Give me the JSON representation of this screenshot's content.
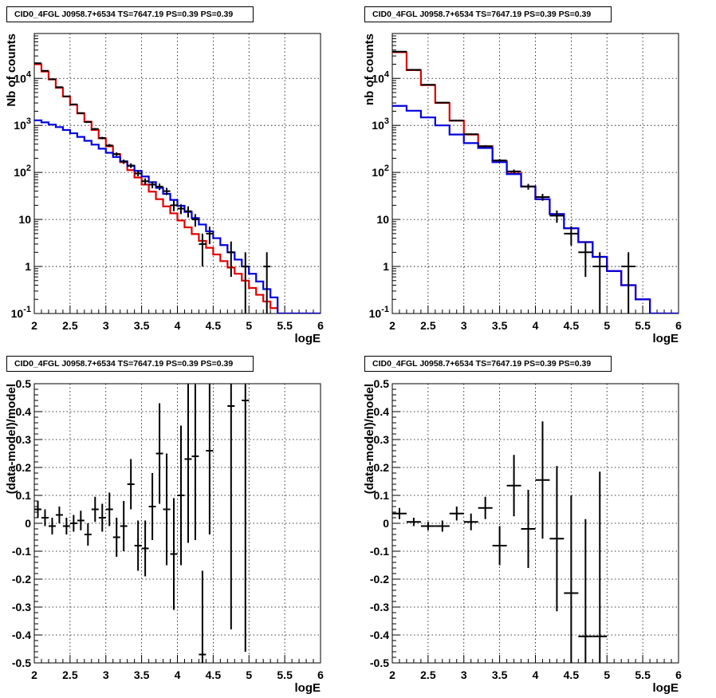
{
  "chart_data": [
    {
      "type": "step-line-with-errorbars",
      "title": "CID0_4FGL J0958.7+6534 TS=7647.19 PS=0.39 PS=0.39",
      "xlabel": "logE",
      "ylabel": "Nb of counts",
      "xlim": [
        2,
        6
      ],
      "ylim": [
        0.1,
        90000
      ],
      "log_y": true,
      "grid": true,
      "xticks": [
        "2",
        "2.5",
        "3",
        "3.5",
        "4",
        "4.5",
        "5",
        "5.5",
        "6"
      ],
      "yticks": [
        "10^-1",
        "1",
        "10",
        "10^2",
        "10^3",
        "10^4"
      ],
      "bin_edges": [
        2.0,
        2.1,
        2.2,
        2.3,
        2.4,
        2.5,
        2.6,
        2.7,
        2.8,
        2.9,
        3.0,
        3.1,
        3.2,
        3.3,
        3.4,
        3.5,
        3.6,
        3.7,
        3.8,
        3.9,
        4.0,
        4.1,
        4.2,
        4.3,
        4.4,
        4.5,
        4.6,
        4.7,
        4.8,
        4.9,
        5.0,
        5.1,
        5.2,
        5.3,
        5.4,
        5.5,
        5.6,
        5.7,
        5.8,
        5.9,
        6.0
      ],
      "series": [
        {
          "color": "#e00000",
          "values": [
            20000,
            14000,
            9500,
            6300,
            4100,
            2750,
            1800,
            1200,
            800,
            530,
            360,
            245,
            165,
            112,
            78,
            55,
            39,
            27,
            19,
            13.5,
            9.5,
            6.8,
            4.9,
            3.5,
            2.5,
            1.8,
            1.3,
            0.95,
            0.7,
            0.5,
            0.35,
            0.25,
            0.18,
            0.13,
            0.1,
            0.1,
            0.1,
            0.1,
            0.1,
            0.1
          ]
        },
        {
          "color": "#0000e0",
          "values": [
            1280,
            1160,
            1040,
            920,
            800,
            680,
            570,
            470,
            390,
            320,
            262,
            213,
            172,
            138,
            108,
            82,
            62,
            47,
            35,
            26,
            19.5,
            14.5,
            10.7,
            7.8,
            5.6,
            4.0,
            2.85,
            2.0,
            1.4,
            1.0,
            0.7,
            0.48,
            0.33,
            0.22,
            0.1,
            0.1,
            0.1,
            0.1,
            0.1,
            0.1
          ]
        }
      ],
      "points": {
        "color": "#000000",
        "x": [
          2.05,
          2.15,
          2.25,
          2.35,
          2.45,
          2.55,
          2.65,
          2.75,
          2.85,
          2.95,
          3.05,
          3.15,
          3.25,
          3.35,
          3.45,
          3.55,
          3.65,
          3.75,
          3.85,
          3.95,
          4.05,
          4.15,
          4.25,
          4.35,
          4.45,
          4.75,
          4.95,
          5.25
        ],
        "y": [
          21000,
          14500,
          9600,
          6500,
          4150,
          2800,
          1830,
          1180,
          840,
          540,
          375,
          245,
          170,
          140,
          95,
          65,
          55,
          50,
          40,
          20,
          17,
          15,
          10,
          3,
          5,
          2,
          1,
          1
        ],
        "yerr_low": [
          200,
          170,
          140,
          120,
          90,
          75,
          60,
          50,
          40,
          32,
          28,
          22,
          18,
          16,
          12,
          10,
          9,
          8,
          7,
          5,
          4,
          4,
          3,
          2,
          2,
          1.4,
          1,
          1
        ],
        "yerr_high": [
          200,
          170,
          140,
          120,
          90,
          75,
          60,
          50,
          40,
          32,
          28,
          22,
          18,
          16,
          12,
          10,
          9,
          8,
          7,
          5,
          4,
          4,
          3,
          2,
          2,
          1.4,
          1,
          1
        ]
      }
    },
    {
      "type": "step-line-with-errorbars",
      "title": "CID0_4FGL J0958.7+6534 TS=7647.19 PS=0.39 PS=0.39",
      "xlabel": "logE",
      "ylabel": "nb of counts",
      "xlim": [
        2,
        6
      ],
      "ylim": [
        0.1,
        90000
      ],
      "log_y": true,
      "grid": true,
      "xticks": [
        "2",
        "2.5",
        "3",
        "3.5",
        "4",
        "4.5",
        "5",
        "5.5",
        "6"
      ],
      "yticks": [
        "10^-1",
        "1",
        "10",
        "10^2",
        "10^3",
        "10^4"
      ],
      "bin_edges": [
        2.0,
        2.2,
        2.4,
        2.6,
        2.8,
        3.0,
        3.2,
        3.4,
        3.6,
        3.8,
        4.0,
        4.2,
        4.4,
        4.6,
        4.8,
        5.0,
        5.2,
        5.4,
        5.6,
        5.8,
        6.0
      ],
      "series": [
        {
          "color": "#e00000",
          "values": [
            36000,
            15000,
            7200,
            3000,
            1260,
            640,
            360,
            175,
            95,
            50,
            27,
            13,
            6.5,
            3.3,
            1.6,
            0.8,
            0.4,
            0.2,
            0.1,
            0.1
          ]
        },
        {
          "color": "#0000e0",
          "values": [
            2600,
            2050,
            1480,
            1000,
            640,
            420,
            330,
            165,
            92,
            50,
            27,
            13,
            6.5,
            3.3,
            1.6,
            0.8,
            0.4,
            0.2,
            0.1,
            0.1
          ]
        }
      ],
      "points": {
        "color": "#000000",
        "x": [
          2.1,
          2.3,
          2.5,
          2.7,
          2.9,
          3.1,
          3.3,
          3.5,
          3.7,
          3.9,
          4.1,
          4.3,
          4.5,
          4.7,
          4.9,
          5.3
        ],
        "y": [
          37000,
          15200,
          7300,
          3050,
          1270,
          650,
          360,
          180,
          105,
          50,
          30,
          12,
          5,
          2,
          1,
          1
        ],
        "yerr_low": [
          190,
          120,
          85,
          55,
          35,
          25,
          19,
          13,
          10,
          7,
          5,
          3.5,
          2.2,
          1.4,
          1,
          1
        ],
        "yerr_high": [
          190,
          120,
          85,
          55,
          35,
          25,
          19,
          13,
          10,
          7,
          5,
          3.5,
          2.2,
          1.4,
          1,
          1
        ]
      }
    },
    {
      "type": "scatter-with-errorbars",
      "title": "CID0_4FGL J0958.7+6534 TS=7647.19 PS=0.39 PS=0.39",
      "xlabel": "logE",
      "ylabel": "(data-model)/model",
      "xlim": [
        2,
        6
      ],
      "ylim": [
        -0.5,
        0.5
      ],
      "grid": true,
      "xticks": [
        "2",
        "2.5",
        "3",
        "3.5",
        "4",
        "4.5",
        "5",
        "5.5",
        "6"
      ],
      "yticks": [
        "-0.5",
        "-0.4",
        "-0.3",
        "-0.2",
        "-0.1",
        "0",
        "0.1",
        "0.2",
        "0.3",
        "0.4",
        "0.5"
      ],
      "points": {
        "color": "#000000",
        "x": [
          2.05,
          2.15,
          2.25,
          2.35,
          2.45,
          2.55,
          2.65,
          2.75,
          2.85,
          2.95,
          3.05,
          3.15,
          3.25,
          3.35,
          3.45,
          3.55,
          3.65,
          3.75,
          3.85,
          3.95,
          4.05,
          4.15,
          4.25,
          4.35,
          4.45,
          4.75,
          4.95
        ],
        "y": [
          0.05,
          0.02,
          -0.01,
          0.03,
          -0.01,
          0.0,
          0.01,
          -0.04,
          0.05,
          0.02,
          0.05,
          -0.05,
          -0.01,
          0.14,
          -0.08,
          -0.09,
          0.06,
          0.25,
          0.05,
          -0.11,
          0.1,
          0.23,
          0.24,
          -0.47,
          0.26,
          0.42,
          0.44
        ],
        "yerr": [
          0.03,
          0.03,
          0.03,
          0.03,
          0.03,
          0.03,
          0.035,
          0.04,
          0.045,
          0.05,
          0.06,
          0.07,
          0.09,
          0.09,
          0.09,
          0.1,
          0.12,
          0.18,
          0.2,
          0.2,
          0.25,
          0.3,
          0.3,
          0.3,
          0.3,
          0.8,
          0.9
        ]
      }
    },
    {
      "type": "scatter-with-errorbars",
      "title": "CID0_4FGL J0958.7+6534 TS=7647.19 PS=0.39 PS=0.39",
      "xlabel": "logE",
      "ylabel": "(data-model)/model",
      "xlim": [
        2,
        6
      ],
      "ylim": [
        -0.5,
        0.5
      ],
      "grid": true,
      "xticks": [
        "2",
        "2.5",
        "3",
        "3.5",
        "4",
        "4.5",
        "5",
        "5.5",
        "6"
      ],
      "yticks": [
        "-0.5",
        "-0.4",
        "-0.3",
        "-0.2",
        "-0.1",
        "0",
        "0.1",
        "0.2",
        "0.3",
        "0.4",
        "0.5"
      ],
      "points": {
        "color": "#000000",
        "x": [
          2.1,
          2.3,
          2.5,
          2.7,
          2.9,
          3.1,
          3.3,
          3.5,
          3.7,
          3.9,
          4.1,
          4.3,
          4.5,
          4.7,
          4.9
        ],
        "y": [
          0.035,
          0.005,
          -0.01,
          -0.01,
          0.035,
          0.005,
          0.055,
          -0.08,
          0.135,
          -0.02,
          0.155,
          -0.055,
          -0.25,
          -0.405,
          -0.405
        ],
        "yerr": [
          0.02,
          0.015,
          0.015,
          0.02,
          0.025,
          0.03,
          0.04,
          0.07,
          0.11,
          0.14,
          0.21,
          0.26,
          0.35,
          0.42,
          0.59
        ]
      }
    }
  ]
}
